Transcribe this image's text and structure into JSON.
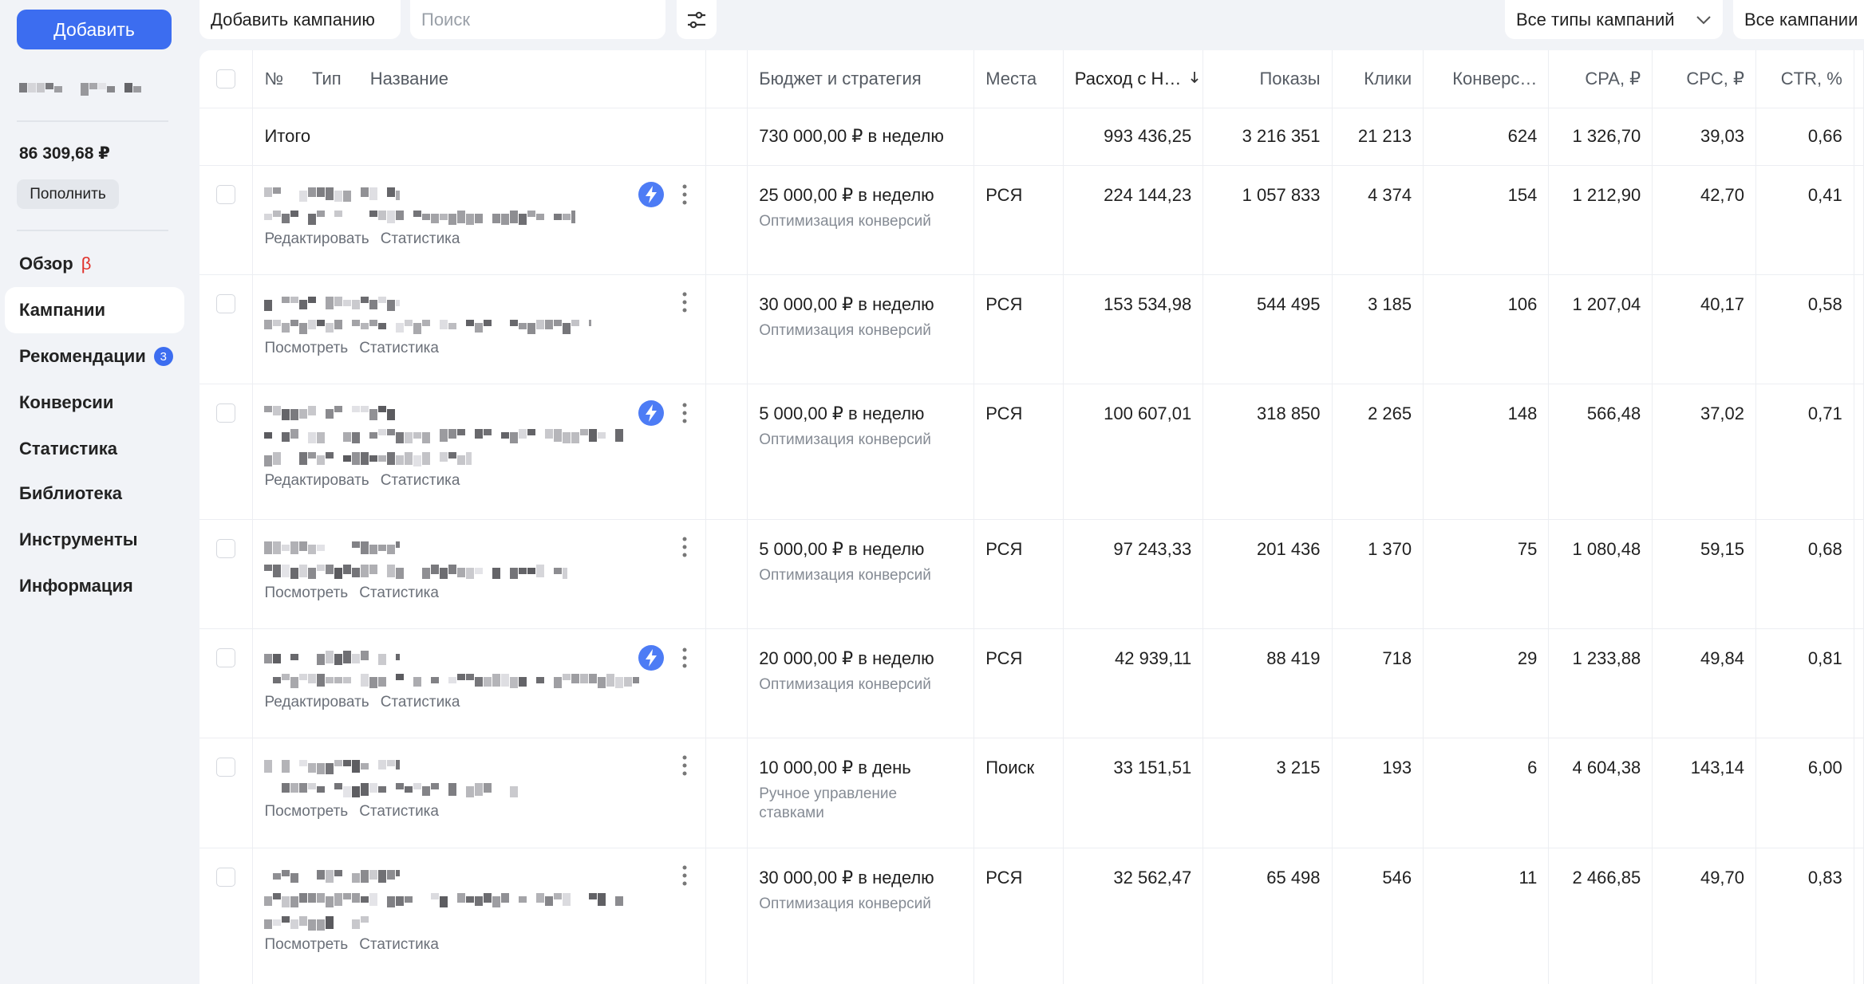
{
  "sidebar": {
    "add_button": "Добавить",
    "balance": "86 309,68 ₽",
    "topup_button": "Пополнить",
    "nav": [
      {
        "label": "Обзор",
        "badge": "β"
      },
      {
        "label": "Кампании",
        "active": true
      },
      {
        "label": "Рекомендации",
        "badge": "3"
      },
      {
        "label": "Конверсии"
      },
      {
        "label": "Статистика"
      },
      {
        "label": "Библиотека"
      },
      {
        "label": "Инструменты"
      },
      {
        "label": "Информация"
      }
    ]
  },
  "toolbar": {
    "add_campaign": "Добавить кампанию",
    "search_placeholder": "Поиск",
    "type_filter": "Все типы кампаний",
    "campaign_filter": "Все кампании"
  },
  "table": {
    "headers": [
      "№",
      "Тип",
      "Название",
      "Бюджет и стратегия",
      "Места",
      "Расход с Н…",
      "Показы",
      "Клики",
      "Конверс…",
      "CPA, ₽",
      "CPC, ₽",
      "CTR, %"
    ],
    "total": {
      "label": "Итого",
      "budget": "730 000,00 ₽ в неделю",
      "spend": "993 436,25",
      "impressions": "3 216 351",
      "clicks": "21 213",
      "conversions": "624",
      "cpa": "1 326,70",
      "cpc": "39,03",
      "ctr": "0,66"
    },
    "rows": [
      {
        "lightning": true,
        "links": [
          "Редактировать",
          "Статистика"
        ],
        "budget": "25 000,00 ₽ в неделю",
        "strategy": "Оптимизация конверсий",
        "places": "РСЯ",
        "spend": "224 144,23",
        "impressions": "1 057 833",
        "clicks": "4 374",
        "conversions": "154",
        "cpa": "1 212,90",
        "cpc": "42,70",
        "ctr": "0,41"
      },
      {
        "lightning": false,
        "links": [
          "Посмотреть",
          "Статистика"
        ],
        "budget": "30 000,00 ₽ в неделю",
        "strategy": "Оптимизация конверсий",
        "places": "РСЯ",
        "spend": "153 534,98",
        "impressions": "544 495",
        "clicks": "3 185",
        "conversions": "106",
        "cpa": "1 207,04",
        "cpc": "40,17",
        "ctr": "0,58"
      },
      {
        "lightning": true,
        "links": [
          "Редактировать",
          "Статистика"
        ],
        "budget": "5 000,00 ₽ в неделю",
        "strategy": "Оптимизация конверсий",
        "places": "РСЯ",
        "spend": "100 607,01",
        "impressions": "318 850",
        "clicks": "2 265",
        "conversions": "148",
        "cpa": "566,48",
        "cpc": "37,02",
        "ctr": "0,71"
      },
      {
        "lightning": false,
        "links": [
          "Посмотреть",
          "Статистика"
        ],
        "budget": "5 000,00 ₽ в неделю",
        "strategy": "Оптимизация конверсий",
        "places": "РСЯ",
        "spend": "97 243,33",
        "impressions": "201 436",
        "clicks": "1 370",
        "conversions": "75",
        "cpa": "1 080,48",
        "cpc": "59,15",
        "ctr": "0,68"
      },
      {
        "lightning": true,
        "links": [
          "Редактировать",
          "Статистика"
        ],
        "budget": "20 000,00 ₽ в неделю",
        "strategy": "Оптимизация конверсий",
        "places": "РСЯ",
        "spend": "42 939,11",
        "impressions": "88 419",
        "clicks": "718",
        "conversions": "29",
        "cpa": "1 233,88",
        "cpc": "49,84",
        "ctr": "0,81"
      },
      {
        "lightning": false,
        "links": [
          "Посмотреть",
          "Статистика"
        ],
        "budget": "10 000,00 ₽ в день",
        "strategy": "Ручное управление ставками",
        "places": "Поиск",
        "spend": "33 151,51",
        "impressions": "3 215",
        "clicks": "193",
        "conversions": "6",
        "cpa": "4 604,38",
        "cpc": "143,14",
        "ctr": "6,00"
      },
      {
        "lightning": false,
        "links": [
          "Посмотреть",
          "Статистика"
        ],
        "budget": "30 000,00 ₽ в неделю",
        "strategy": "Оптимизация конверсий",
        "places": "РСЯ",
        "spend": "32 562,47",
        "impressions": "65 498",
        "clicks": "546",
        "conversions": "11",
        "cpa": "2 466,85",
        "cpc": "49,70",
        "ctr": "0,83"
      }
    ]
  }
}
